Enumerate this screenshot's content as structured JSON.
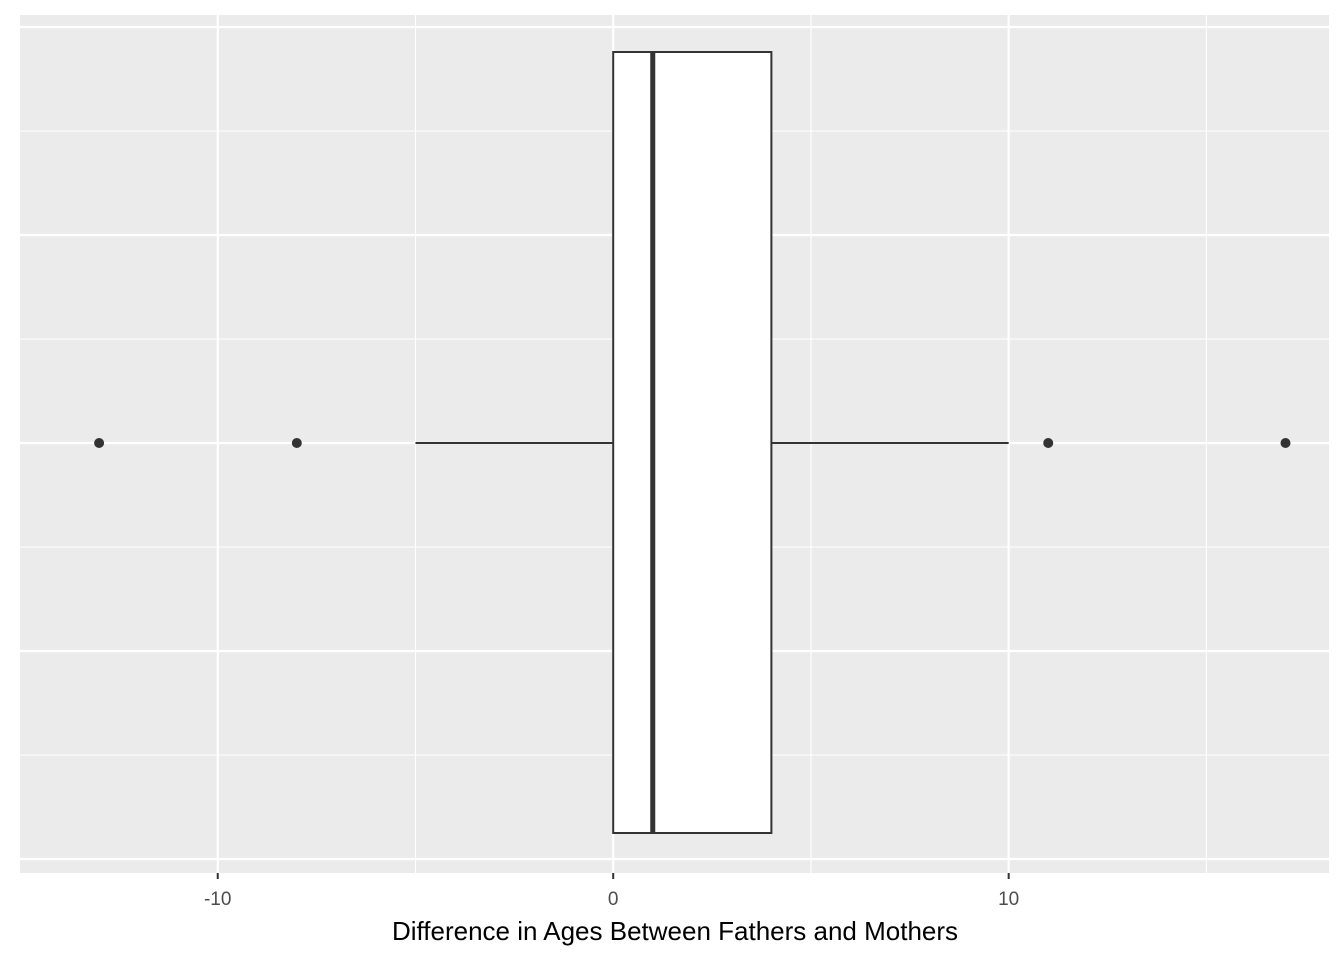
{
  "chart_data": {
    "type": "boxplot",
    "orientation": "horizontal",
    "title": "",
    "xlabel": "Difference in Ages Between Fathers and Mothers",
    "ylabel": "",
    "xlim": [
      -15,
      18.1
    ],
    "x_ticks": [
      -10,
      0,
      10
    ],
    "x_tick_labels": [
      "-10",
      "0",
      "10"
    ],
    "x_minor_ticks": [
      -5,
      5,
      15
    ],
    "grid": true,
    "legend": "none",
    "box": {
      "lower_whisker": -5,
      "q1": 0,
      "median": 1,
      "q3": 4,
      "upper_whisker": 10,
      "outliers": [
        -13,
        -8,
        11,
        17
      ]
    },
    "colors": {
      "panel_background": "#EBEBEB",
      "grid_line": "#FFFFFF",
      "box_fill": "#FFFFFF",
      "box_stroke": "#333333",
      "tick_label": "#4D4D4D",
      "axis_title": "#000000"
    }
  }
}
